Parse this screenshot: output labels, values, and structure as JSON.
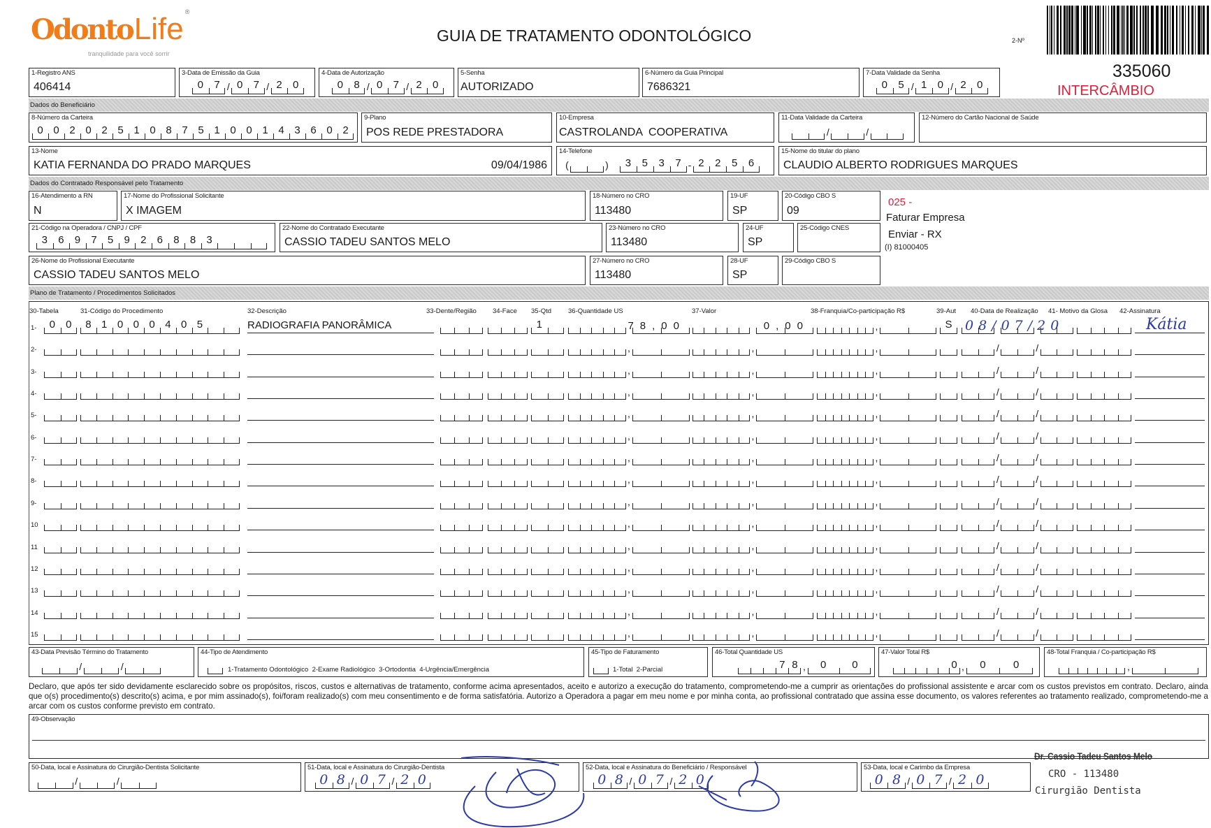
{
  "header": {
    "logo_text_1": "Odonto",
    "logo_text_2": "Life",
    "logo_mark": "®",
    "tagline": "tranquilidade para você sorrir",
    "title": "GUIA DE TRATAMENTO ODONTOLÓGICO",
    "numero_label": "2-Nº",
    "numero": "335060",
    "intercambio": "INTERCÂMBIO"
  },
  "colors": {
    "logo": "#f07d1a",
    "stamp_red": "#e0203a",
    "ink_blue": "#2b3aa8",
    "band": "#d0d0d0"
  },
  "sections": {
    "beneficiario": "Dados do Beneficiário",
    "contratado": "Dados do Contratado Responsável pelo Tratamento",
    "plano": "Plano de Tratamento / Procedimentos Solicitados"
  },
  "fields": {
    "f1": {
      "label": "1-Registro ANS",
      "value": "406414"
    },
    "f3": {
      "label": "3-Data de Emissão da Guia",
      "value": "07/07/20"
    },
    "f4": {
      "label": "4-Data de Autorização",
      "value": "08/07/20"
    },
    "f5": {
      "label": "5-Senha",
      "value": "AUTORIZADO"
    },
    "f6": {
      "label": "6-Número da Guia Principal",
      "value": "7686321"
    },
    "f7": {
      "label": "7-Data Validade da Senha",
      "value": "05/10/20"
    },
    "f8": {
      "label": "8-Número da Carteira",
      "value": "00202510875100143602"
    },
    "f9": {
      "label": "9-Plano",
      "value": "POS REDE PRESTADORA"
    },
    "f10": {
      "label": "10-Empresa",
      "value": "CASTROLANDA  COOPERATIVA"
    },
    "f11": {
      "label": "11-Data Validade da Carteira",
      "value": "//"
    },
    "f12": {
      "label": "12-Número do Cartão Nacional de Saúde",
      "value": ""
    },
    "f13": {
      "label": "13-Nome",
      "value": "KATIA FERNANDA DO PRADO MARQUES",
      "birth": "09/04/1986"
    },
    "f14": {
      "label": "14-Telefone",
      "area": "",
      "value": "3537-2256"
    },
    "f15": {
      "label": "15-Nome do titular do plano",
      "value": "CLAUDIO ALBERTO RODRIGUES MARQUES"
    },
    "f16": {
      "label": "16-Atendimento a RN",
      "value": "N"
    },
    "f17": {
      "label": "17-Nome do Profissional Solicitante",
      "value": "X IMAGEM"
    },
    "f18": {
      "label": "18-Número no CRO",
      "value": "113480"
    },
    "f19": {
      "label": "19-UF",
      "value": "SP"
    },
    "f20": {
      "label": "20-Código CBO S",
      "value": "09"
    },
    "f21": {
      "label": "21-Código na Operadora / CNPJ / CPF",
      "value": "36975926883"
    },
    "f22": {
      "label": "22-Nome do Contratado Executante",
      "value": "CASSIO TADEU SANTOS MELO"
    },
    "f23": {
      "label": "23-Número no CRO",
      "value": "113480"
    },
    "f24": {
      "label": "24-UF",
      "value": "SP"
    },
    "f25": {
      "label": "25-Código CNES",
      "value": ""
    },
    "f26": {
      "label": "26-Nome do Profissional Executante",
      "value": "CASSIO TADEU SANTOS MELO"
    },
    "f27": {
      "label": "27-Número no CRO",
      "value": "113480"
    },
    "f28": {
      "label": "28-UF",
      "value": "SP"
    },
    "f29": {
      "label": "29-Código CBO S",
      "value": ""
    },
    "f43": {
      "label": "43-Data Previsão Término do Tratamento",
      "value": "//"
    },
    "f44": {
      "label": "44-Tipo de Atendimento",
      "value": "",
      "options": "1-Tratamento Odontológico  2-Exame Radiológico  3-Ortodontia  4-Urgência/Emergência"
    },
    "f45": {
      "label": "45-Tipo de Faturamento",
      "value": "",
      "options": "1-Total  2-Parcial"
    },
    "f46": {
      "label": "46-Total Quantidade US",
      "value": "78,00"
    },
    "f47": {
      "label": "47-Valor Total R$",
      "value": "0,00"
    },
    "f48": {
      "label": "48-Total Franquia / Co-participação R$",
      "value": ","
    },
    "f49": {
      "label": "49-Observação",
      "value": ""
    },
    "f50": {
      "label": "50-Data, local e Assinatura do Cirurgião-Dentista Solicitante",
      "value": "//"
    },
    "f51": {
      "label": "51-Data, local e Assinatura do Cirurgião-Dentista",
      "value": "08/07/20"
    },
    "f52": {
      "label": "52-Data, local e Assinatura do Beneficiário / Responsável",
      "value": "08/07/20"
    },
    "f53": {
      "label": "53-Data, local e Carimbo da Empresa",
      "value": "08/07/20"
    }
  },
  "notes": {
    "code": "025 -",
    "faturar": "Faturar Empresa",
    "enviar": "Enviar - RX",
    "ref": "(I) 81000405"
  },
  "procedures": {
    "headers": [
      "30-Tabela",
      "31-Código do Procedimento",
      "32-Descrição",
      "33-Dente/Região",
      "34-Face",
      "35-Qtd",
      "36-Quantidade US",
      "37-Valor",
      "38-Franquia/Co-participação R$",
      "39-Aut",
      "40-Data de Realização",
      "41- Motivo da Glosa",
      "42-Assinatura"
    ],
    "rows": [
      {
        "num": "1-",
        "tabela": "00",
        "codigo": "81000405",
        "descricao": "RADIOGRAFIA PANORÂMICA",
        "dente": "",
        "face": "",
        "qtd": "1",
        "qtd_us": "78,00",
        "valor": "0,00",
        "franquia": ",",
        "aut": "S",
        "data": "08/07/20",
        "glosa": "",
        "assinatura": "Kátia"
      },
      {
        "num": "2-",
        "tabela": "",
        "codigo": "",
        "descricao": "",
        "dente": "",
        "face": "",
        "qtd": "",
        "qtd_us": ",",
        "valor": ",",
        "franquia": ",",
        "aut": "",
        "data": "//",
        "glosa": "",
        "assinatura": ""
      },
      {
        "num": "3-",
        "tabela": "",
        "codigo": "",
        "descricao": "",
        "dente": "",
        "face": "",
        "qtd": "",
        "qtd_us": ",",
        "valor": ",",
        "franquia": ",",
        "aut": "",
        "data": "//",
        "glosa": "",
        "assinatura": ""
      },
      {
        "num": "4-",
        "tabela": "",
        "codigo": "",
        "descricao": "",
        "dente": "",
        "face": "",
        "qtd": "",
        "qtd_us": ",",
        "valor": ",",
        "franquia": ",",
        "aut": "",
        "data": "//",
        "glosa": "",
        "assinatura": ""
      },
      {
        "num": "5-",
        "tabela": "",
        "codigo": "",
        "descricao": "",
        "dente": "",
        "face": "",
        "qtd": "",
        "qtd_us": ",",
        "valor": ",",
        "franquia": ",",
        "aut": "",
        "data": "//",
        "glosa": "",
        "assinatura": ""
      },
      {
        "num": "6-",
        "tabela": "",
        "codigo": "",
        "descricao": "",
        "dente": "",
        "face": "",
        "qtd": "",
        "qtd_us": ",",
        "valor": ",",
        "franquia": ",",
        "aut": "",
        "data": "//",
        "glosa": "",
        "assinatura": ""
      },
      {
        "num": "7-",
        "tabela": "",
        "codigo": "",
        "descricao": "",
        "dente": "",
        "face": "",
        "qtd": "",
        "qtd_us": ",",
        "valor": ",",
        "franquia": ",",
        "aut": "",
        "data": "//",
        "glosa": "",
        "assinatura": ""
      },
      {
        "num": "8-",
        "tabela": "",
        "codigo": "",
        "descricao": "",
        "dente": "",
        "face": "",
        "qtd": "",
        "qtd_us": ",",
        "valor": ",",
        "franquia": ",",
        "aut": "",
        "data": "//",
        "glosa": "",
        "assinatura": ""
      },
      {
        "num": "9-",
        "tabela": "",
        "codigo": "",
        "descricao": "",
        "dente": "",
        "face": "",
        "qtd": "",
        "qtd_us": ",",
        "valor": ",",
        "franquia": ",",
        "aut": "",
        "data": "//",
        "glosa": "",
        "assinatura": ""
      },
      {
        "num": "10",
        "tabela": "",
        "codigo": "",
        "descricao": "",
        "dente": "",
        "face": "",
        "qtd": "",
        "qtd_us": ",",
        "valor": ",",
        "franquia": ",",
        "aut": "",
        "data": "//",
        "glosa": "",
        "assinatura": ""
      },
      {
        "num": "11",
        "tabela": "",
        "codigo": "",
        "descricao": "",
        "dente": "",
        "face": "",
        "qtd": "",
        "qtd_us": ",",
        "valor": ",",
        "franquia": ",",
        "aut": "",
        "data": "//",
        "glosa": "",
        "assinatura": ""
      },
      {
        "num": "12",
        "tabela": "",
        "codigo": "",
        "descricao": "",
        "dente": "",
        "face": "",
        "qtd": "",
        "qtd_us": ",",
        "valor": ",",
        "franquia": ",",
        "aut": "",
        "data": "//",
        "glosa": "",
        "assinatura": ""
      },
      {
        "num": "13",
        "tabela": "",
        "codigo": "",
        "descricao": "",
        "dente": "",
        "face": "",
        "qtd": "",
        "qtd_us": ",",
        "valor": ",",
        "franquia": ",",
        "aut": "",
        "data": "//",
        "glosa": "",
        "assinatura": ""
      },
      {
        "num": "14",
        "tabela": "",
        "codigo": "",
        "descricao": "",
        "dente": "",
        "face": "",
        "qtd": "",
        "qtd_us": ",",
        "valor": ",",
        "franquia": ",",
        "aut": "",
        "data": "//",
        "glosa": "",
        "assinatura": ""
      },
      {
        "num": "15",
        "tabela": "",
        "codigo": "",
        "descricao": "",
        "dente": "",
        "face": "",
        "qtd": "",
        "qtd_us": ",",
        "valor": ",",
        "franquia": ",",
        "aut": "",
        "data": "//",
        "glosa": "",
        "assinatura": ""
      }
    ]
  },
  "declaration": "Declaro, que após ter sido devidamente esclarecido sobre os propósitos, riscos, custos e alternativas de tratamento, conforme acima apresentados, aceito e autorizo a execução do tratamento, comprometendo-me a cumprir as orientações do profissional assistente e arcar com os custos previstos em contrato. Declaro, ainda que o(s) procedimento(s) descrito(s) acima, e por mim assinado(s), foi/foram realizado(s) com meu consentimento e de forma satisfatória. Autorizo a Operadora a pagar em meu nome e por minha conta, ao profissional contratado que assina esse documento, os valores referentes ao tratamento realizado, comprometendo-me a arcar com os custos conforme previsto em contrato.",
  "stamp": {
    "name": "Dr. Cassio Tadeu Santos Melo",
    "cro": "CRO - 113480",
    "title": "Cirurgião Dentista"
  }
}
